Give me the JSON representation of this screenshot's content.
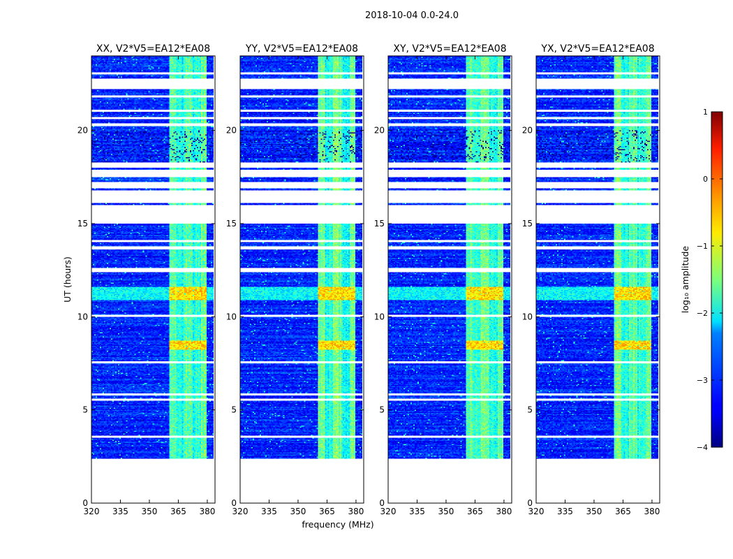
{
  "chart_data": {
    "type": "heatmap",
    "suptitle": "2018-10-04 0.0-24.0",
    "xlabel": "frequency (MHz)",
    "ylabel": "UT (hours)",
    "xlim": [
      320,
      384
    ],
    "ylim": [
      0,
      24
    ],
    "xticks": [
      320,
      335,
      350,
      365,
      380
    ],
    "xtick_labels": [
      "320",
      "335",
      "350",
      "365",
      "380"
    ],
    "yticks": [
      0,
      5,
      10,
      15,
      20
    ],
    "ytick_labels": [
      "0",
      "5",
      "10",
      "15",
      "20"
    ],
    "data_time_range": [
      2.4,
      24.0
    ],
    "bright_band_mhz": [
      360,
      380
    ],
    "strong_interference_ut": [
      [
        8.2,
        8.7
      ],
      [
        10.9,
        11.6
      ]
    ],
    "gap_ranges_ut": [
      [
        23.0,
        23.1
      ],
      [
        22.2,
        22.8
      ],
      [
        21.8,
        21.9
      ],
      [
        21.0,
        21.1
      ],
      [
        20.6,
        20.7
      ],
      [
        20.2,
        20.4
      ],
      [
        18.0,
        18.3
      ],
      [
        17.5,
        17.9
      ],
      [
        16.9,
        17.2
      ],
      [
        16.1,
        16.8
      ],
      [
        15.0,
        16.0
      ],
      [
        14.0,
        14.1
      ],
      [
        13.6,
        13.8
      ],
      [
        12.4,
        12.6
      ],
      [
        10.0,
        10.1
      ],
      [
        7.5,
        7.6
      ],
      [
        5.8,
        5.9
      ],
      [
        5.5,
        5.6
      ],
      [
        3.5,
        3.6
      ]
    ],
    "panels": [
      {
        "title": "XX, V2*V5=EA12*EA08",
        "bright_offset": 0
      },
      {
        "title": "YY, V2*V5=EA12*EA08",
        "bright_offset": 0
      },
      {
        "title": "XY, V2*V5=EA12*EA08",
        "bright_offset": 0
      },
      {
        "title": "YX, V2*V5=EA12*EA08",
        "bright_offset": 0
      }
    ],
    "colorbar": {
      "label": "log₁₀ amplitude",
      "range": [
        -4,
        1
      ],
      "ticks": [
        1,
        0,
        -1,
        -2,
        -3,
        -4
      ],
      "tick_labels": [
        "1",
        "0",
        "−1",
        "−2",
        "−3",
        "−4"
      ],
      "colormap": "jet"
    }
  }
}
